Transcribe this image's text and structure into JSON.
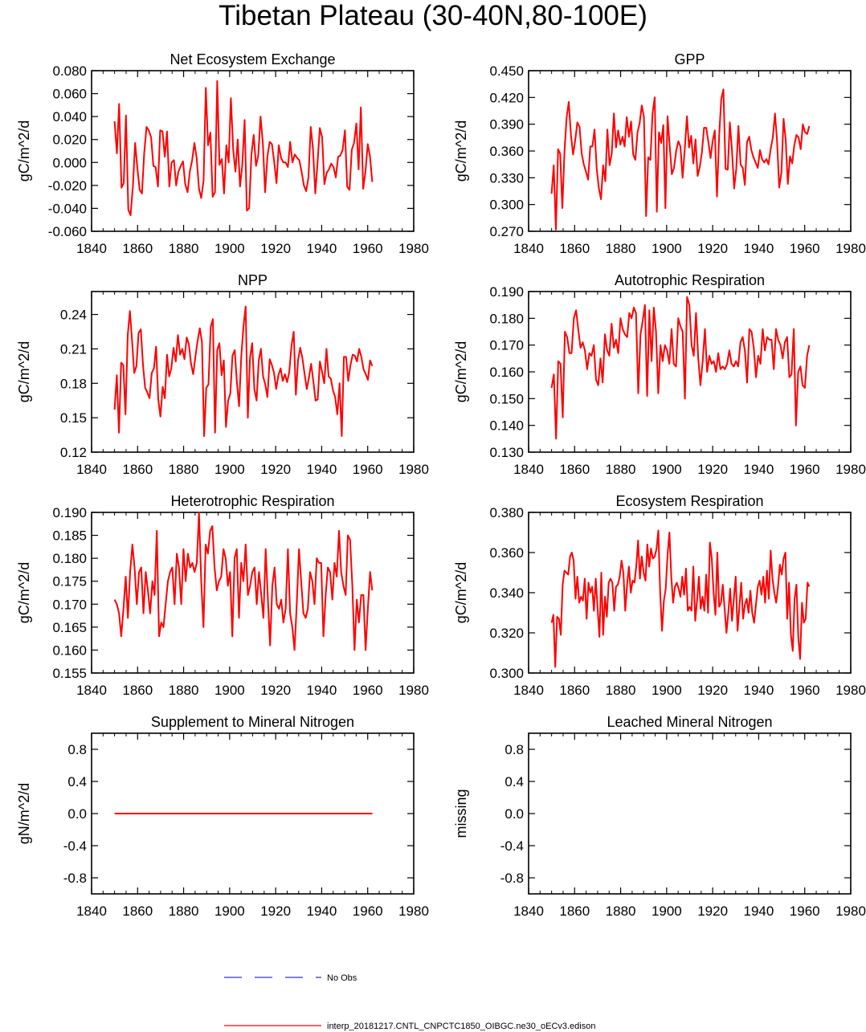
{
  "figure": {
    "title": "Tibetan Plateau (30-40N,80-100E)",
    "line_color": "#ff0000",
    "obs_color": "#3030cc"
  },
  "legend": {
    "obs_label": "No Obs",
    "model_label": "interp_20181217.CNTL_CNPCTC1850_OIBGC.ne30_oECv3.edison"
  },
  "chart_data": [
    {
      "type": "line",
      "title": "Net Ecosystem Exchange",
      "ylabel": "gC/m^2/d",
      "xlim": [
        1840,
        1980
      ],
      "ylim": [
        -0.06,
        0.08
      ],
      "xticks": [
        "1840",
        "1860",
        "1880",
        "1900",
        "1920",
        "1940",
        "1960",
        "1980"
      ],
      "yticks": [
        "-0.060",
        "-0.040",
        "-0.020",
        "0.000",
        "0.020",
        "0.040",
        "0.060",
        "0.080"
      ],
      "ytick_values": [
        -0.06,
        -0.04,
        -0.02,
        0.0,
        0.02,
        0.04,
        0.06,
        0.08
      ],
      "x_start": 1850,
      "values": [
        0.036,
        0.008,
        0.051,
        -0.022,
        -0.018,
        0.041,
        -0.041,
        -0.046,
        -0.021,
        0.017,
        -0.005,
        -0.024,
        -0.027,
        0.008,
        0.031,
        0.028,
        0.022,
        -0.003,
        -0.004,
        -0.021,
        0.028,
        0.027,
        0.005,
        0.027,
        -0.021,
        0.0,
        0.002,
        -0.02,
        -0.008,
        -0.003,
        0.001,
        -0.019,
        -0.026,
        -0.008,
        0.002,
        0.017,
        0.004,
        -0.023,
        -0.031,
        -0.016,
        0.065,
        0.015,
        0.026,
        -0.03,
        -0.026,
        0.071,
        -0.002,
        0.003,
        -0.027,
        0.015,
        0.0,
        0.056,
        0.011,
        -0.008,
        0.02,
        -0.021,
        -0.002,
        0.037,
        -0.042,
        -0.04,
        0.007,
        0.024,
        -0.003,
        0.006,
        0.04,
        0.017,
        -0.026,
        0.005,
        0.018,
        0.016,
        0.0,
        -0.018,
        0.015,
        0.004,
        0.0,
        0.0,
        -0.004,
        0.018,
        0.0,
        0.007,
        0.004,
        0.002,
        -0.008,
        -0.02,
        -0.025,
        -0.013,
        0.031,
        0.012,
        -0.027,
        0.0,
        0.03,
        0.022,
        -0.019,
        -0.009,
        -0.006,
        -0.001,
        -0.004,
        -0.013,
        0.005,
        0.006,
        0.011,
        0.028,
        -0.021,
        -0.024,
        0.011,
        0.017,
        0.034,
        -0.006,
        0.048,
        -0.023,
        -0.008,
        0.016,
        0.005,
        -0.017
      ]
    },
    {
      "type": "line",
      "title": "GPP",
      "ylabel": "gC/m^2/d",
      "xlim": [
        1840,
        1980
      ],
      "ylim": [
        0.27,
        0.45
      ],
      "xticks": [
        "1840",
        "1860",
        "1880",
        "1900",
        "1920",
        "1940",
        "1960",
        "1980"
      ],
      "yticks": [
        "0.270",
        "0.300",
        "0.330",
        "0.360",
        "0.390",
        "0.420",
        "0.450"
      ],
      "ytick_values": [
        0.27,
        0.3,
        0.33,
        0.36,
        0.39,
        0.42,
        0.45
      ],
      "x_start": 1850,
      "values": [
        0.312,
        0.344,
        0.272,
        0.362,
        0.357,
        0.296,
        0.36,
        0.398,
        0.415,
        0.378,
        0.356,
        0.372,
        0.392,
        0.387,
        0.357,
        0.345,
        0.337,
        0.328,
        0.365,
        0.365,
        0.384,
        0.34,
        0.318,
        0.306,
        0.344,
        0.326,
        0.384,
        0.344,
        0.357,
        0.402,
        0.364,
        0.383,
        0.367,
        0.376,
        0.365,
        0.398,
        0.376,
        0.393,
        0.356,
        0.35,
        0.381,
        0.391,
        0.411,
        0.398,
        0.287,
        0.353,
        0.35,
        0.402,
        0.42,
        0.292,
        0.381,
        0.369,
        0.389,
        0.296,
        0.399,
        0.365,
        0.334,
        0.341,
        0.36,
        0.371,
        0.365,
        0.33,
        0.362,
        0.399,
        0.364,
        0.377,
        0.346,
        0.373,
        0.332,
        0.342,
        0.359,
        0.386,
        0.386,
        0.37,
        0.352,
        0.371,
        0.383,
        0.309,
        0.377,
        0.418,
        0.429,
        0.34,
        0.339,
        0.392,
        0.36,
        0.318,
        0.34,
        0.388,
        0.345,
        0.341,
        0.322,
        0.37,
        0.376,
        0.361,
        0.353,
        0.347,
        0.341,
        0.361,
        0.351,
        0.347,
        0.351,
        0.345,
        0.362,
        0.375,
        0.402,
        0.371,
        0.319,
        0.336,
        0.396,
        0.373,
        0.323,
        0.354,
        0.346,
        0.366,
        0.378,
        0.375,
        0.362,
        0.39,
        0.381,
        0.379,
        0.388
      ]
    },
    {
      "type": "line",
      "title": "NPP",
      "ylabel": "gC/m^2/d",
      "xlim": [
        1840,
        1980
      ],
      "ylim": [
        0.12,
        0.26
      ],
      "xticks": [
        "1840",
        "1860",
        "1880",
        "1900",
        "1920",
        "1940",
        "1960",
        "1980"
      ],
      "yticks": [
        "0.12",
        "0.15",
        "0.18",
        "0.21",
        "0.24"
      ],
      "ytick_values": [
        0.12,
        0.15,
        0.18,
        0.21,
        0.24
      ],
      "x_start": 1850,
      "values": [
        0.157,
        0.187,
        0.137,
        0.198,
        0.196,
        0.153,
        0.222,
        0.243,
        0.217,
        0.189,
        0.195,
        0.224,
        0.227,
        0.196,
        0.176,
        0.172,
        0.167,
        0.189,
        0.193,
        0.212,
        0.166,
        0.151,
        0.177,
        0.167,
        0.205,
        0.186,
        0.193,
        0.211,
        0.199,
        0.222,
        0.205,
        0.21,
        0.201,
        0.22,
        0.214,
        0.197,
        0.188,
        0.203,
        0.217,
        0.228,
        0.216,
        0.134,
        0.176,
        0.179,
        0.229,
        0.236,
        0.137,
        0.209,
        0.215,
        0.187,
        0.2,
        0.142,
        0.165,
        0.171,
        0.204,
        0.209,
        0.181,
        0.16,
        0.203,
        0.229,
        0.247,
        0.15,
        0.202,
        0.215,
        0.175,
        0.165,
        0.2,
        0.21,
        0.186,
        0.179,
        0.168,
        0.201,
        0.196,
        0.189,
        0.175,
        0.187,
        0.193,
        0.182,
        0.188,
        0.181,
        0.19,
        0.213,
        0.225,
        0.17,
        0.2,
        0.211,
        0.202,
        0.188,
        0.175,
        0.185,
        0.197,
        0.182,
        0.165,
        0.166,
        0.199,
        0.19,
        0.18,
        0.21,
        0.186,
        0.184,
        0.174,
        0.168,
        0.153,
        0.18,
        0.134,
        0.203,
        0.203,
        0.182,
        0.196,
        0.205,
        0.204,
        0.199,
        0.21,
        0.203,
        0.192,
        0.188,
        0.183,
        0.2,
        0.195
      ]
    },
    {
      "type": "line",
      "title": "Autotrophic Respiration",
      "ylabel": "gC/m^2/d",
      "xlim": [
        1840,
        1980
      ],
      "ylim": [
        0.13,
        0.19
      ],
      "xticks": [
        "1840",
        "1860",
        "1880",
        "1900",
        "1920",
        "1940",
        "1960",
        "1980"
      ],
      "yticks": [
        "0.130",
        "0.140",
        "0.150",
        "0.160",
        "0.170",
        "0.180",
        "0.190"
      ],
      "ytick_values": [
        0.13,
        0.14,
        0.15,
        0.16,
        0.17,
        0.18,
        0.19
      ],
      "x_start": 1850,
      "values": [
        0.154,
        0.159,
        0.135,
        0.164,
        0.163,
        0.143,
        0.175,
        0.173,
        0.167,
        0.167,
        0.18,
        0.183,
        0.176,
        0.169,
        0.171,
        0.168,
        0.161,
        0.167,
        0.166,
        0.17,
        0.157,
        0.155,
        0.165,
        0.156,
        0.174,
        0.168,
        0.166,
        0.178,
        0.169,
        0.172,
        0.167,
        0.18,
        0.176,
        0.174,
        0.173,
        0.182,
        0.18,
        0.184,
        0.182,
        0.152,
        0.174,
        0.179,
        0.185,
        0.151,
        0.183,
        0.164,
        0.184,
        0.175,
        0.152,
        0.17,
        0.164,
        0.17,
        0.168,
        0.163,
        0.176,
        0.163,
        0.162,
        0.18,
        0.177,
        0.175,
        0.15,
        0.188,
        0.185,
        0.17,
        0.166,
        0.182,
        0.165,
        0.155,
        0.164,
        0.176,
        0.16,
        0.166,
        0.163,
        0.164,
        0.16,
        0.167,
        0.161,
        0.162,
        0.161,
        0.163,
        0.168,
        0.163,
        0.162,
        0.164,
        0.162,
        0.171,
        0.173,
        0.168,
        0.156,
        0.176,
        0.175,
        0.169,
        0.158,
        0.166,
        0.163,
        0.176,
        0.168,
        0.173,
        0.172,
        0.172,
        0.161,
        0.176,
        0.172,
        0.17,
        0.165,
        0.171,
        0.173,
        0.158,
        0.159,
        0.176,
        0.14,
        0.16,
        0.162,
        0.155,
        0.154,
        0.166,
        0.17
      ]
    },
    {
      "type": "line",
      "title": "Heterotrophic Respiration",
      "ylabel": "gC/m^2/d",
      "xlim": [
        1840,
        1980
      ],
      "ylim": [
        0.155,
        0.19
      ],
      "xticks": [
        "1840",
        "1860",
        "1880",
        "1900",
        "1920",
        "1940",
        "1960",
        "1980"
      ],
      "yticks": [
        "0.155",
        "0.160",
        "0.165",
        "0.170",
        "0.175",
        "0.180",
        "0.185",
        "0.190"
      ],
      "ytick_values": [
        0.155,
        0.16,
        0.165,
        0.17,
        0.175,
        0.18,
        0.185,
        0.19
      ],
      "x_start": 1850,
      "values": [
        0.171,
        0.17,
        0.168,
        0.163,
        0.169,
        0.176,
        0.167,
        0.177,
        0.183,
        0.178,
        0.17,
        0.177,
        0.178,
        0.168,
        0.177,
        0.173,
        0.168,
        0.175,
        0.172,
        0.186,
        0.163,
        0.166,
        0.165,
        0.17,
        0.175,
        0.177,
        0.178,
        0.17,
        0.181,
        0.178,
        0.17,
        0.182,
        0.175,
        0.181,
        0.178,
        0.179,
        0.177,
        0.179,
        0.19,
        0.175,
        0.165,
        0.183,
        0.181,
        0.186,
        0.187,
        0.178,
        0.173,
        0.175,
        0.176,
        0.182,
        0.18,
        0.174,
        0.177,
        0.163,
        0.18,
        0.182,
        0.167,
        0.179,
        0.175,
        0.183,
        0.172,
        0.174,
        0.177,
        0.178,
        0.17,
        0.177,
        0.172,
        0.167,
        0.182,
        0.171,
        0.161,
        0.174,
        0.178,
        0.17,
        0.169,
        0.171,
        0.166,
        0.169,
        0.182,
        0.168,
        0.165,
        0.16,
        0.17,
        0.182,
        0.175,
        0.168,
        0.167,
        0.169,
        0.177,
        0.175,
        0.17,
        0.18,
        0.179,
        0.179,
        0.163,
        0.172,
        0.178,
        0.177,
        0.171,
        0.179,
        0.176,
        0.186,
        0.177,
        0.174,
        0.172,
        0.185,
        0.184,
        0.174,
        0.16,
        0.171,
        0.166,
        0.172,
        0.172,
        0.16,
        0.169,
        0.177,
        0.173
      ]
    },
    {
      "type": "line",
      "title": "Ecosystem Respiration",
      "ylabel": "gC/m^2/d",
      "xlim": [
        1840,
        1980
      ],
      "ylim": [
        0.3,
        0.38
      ],
      "xticks": [
        "1840",
        "1860",
        "1880",
        "1900",
        "1920",
        "1940",
        "1960",
        "1980"
      ],
      "yticks": [
        "0.300",
        "0.320",
        "0.340",
        "0.360",
        "0.380"
      ],
      "ytick_values": [
        0.3,
        0.32,
        0.34,
        0.36,
        0.38
      ],
      "x_start": 1850,
      "values": [
        0.325,
        0.329,
        0.303,
        0.328,
        0.327,
        0.319,
        0.344,
        0.351,
        0.35,
        0.349,
        0.358,
        0.36,
        0.356,
        0.337,
        0.348,
        0.335,
        0.338,
        0.336,
        0.347,
        0.327,
        0.345,
        0.34,
        0.343,
        0.331,
        0.347,
        0.332,
        0.318,
        0.35,
        0.319,
        0.338,
        0.328,
        0.345,
        0.347,
        0.345,
        0.331,
        0.343,
        0.344,
        0.348,
        0.356,
        0.35,
        0.331,
        0.344,
        0.353,
        0.34,
        0.346,
        0.345,
        0.353,
        0.366,
        0.347,
        0.358,
        0.35,
        0.346,
        0.364,
        0.353,
        0.362,
        0.357,
        0.358,
        0.362,
        0.371,
        0.34,
        0.321,
        0.336,
        0.342,
        0.359,
        0.37,
        0.348,
        0.335,
        0.343,
        0.345,
        0.342,
        0.338,
        0.348,
        0.339,
        0.352,
        0.331,
        0.333,
        0.331,
        0.353,
        0.326,
        0.336,
        0.348,
        0.332,
        0.338,
        0.331,
        0.349,
        0.33,
        0.365,
        0.357,
        0.34,
        0.329,
        0.36,
        0.333,
        0.335,
        0.344,
        0.332,
        0.32,
        0.33,
        0.342,
        0.326,
        0.337,
        0.348,
        0.321,
        0.333,
        0.345,
        0.327,
        0.334,
        0.337,
        0.33,
        0.341,
        0.33,
        0.325,
        0.334,
        0.343,
        0.346,
        0.339,
        0.348,
        0.335,
        0.351,
        0.337,
        0.361,
        0.347,
        0.34,
        0.335,
        0.343,
        0.354,
        0.349,
        0.357,
        0.36,
        0.327,
        0.345,
        0.319,
        0.311,
        0.337,
        0.344,
        0.318,
        0.307,
        0.335,
        0.325,
        0.327,
        0.345,
        0.343
      ]
    },
    {
      "type": "line",
      "title": "Supplement to Mineral Nitrogen",
      "ylabel": "gN/m^2/d",
      "xlim": [
        1840,
        1980
      ],
      "ylim": [
        -1.0,
        1.0
      ],
      "xticks": [
        "1840",
        "1860",
        "1880",
        "1900",
        "1920",
        "1940",
        "1960",
        "1980"
      ],
      "yticks": [
        "-0.8",
        "-0.4",
        "0.0",
        "0.4",
        "0.8"
      ],
      "ytick_values": [
        -0.8,
        -0.4,
        0.0,
        0.4,
        0.8
      ],
      "x_start": 1850,
      "x_end": 1962,
      "constant_value": 0.0
    },
    {
      "type": "line",
      "title": "Leached Mineral Nitrogen",
      "ylabel": "missing",
      "xlim": [
        1840,
        1980
      ],
      "ylim": [
        -1.0,
        1.0
      ],
      "xticks": [
        "1840",
        "1860",
        "1880",
        "1900",
        "1920",
        "1940",
        "1960",
        "1980"
      ],
      "yticks": [
        "-0.8",
        "-0.4",
        "0.0",
        "0.4",
        "0.8"
      ],
      "ytick_values": [
        -0.8,
        -0.4,
        0.0,
        0.4,
        0.8
      ]
    }
  ]
}
